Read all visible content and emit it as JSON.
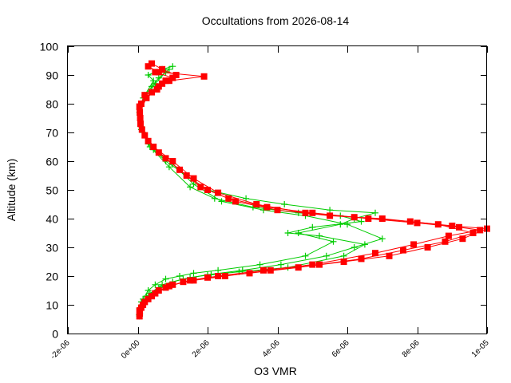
{
  "chart_data": {
    "type": "scatter",
    "title": "Occultations from 2026-08-14",
    "xlabel": "O3 VMR",
    "ylabel": "Altitude (km)",
    "xlim": [
      -2e-06,
      1e-05
    ],
    "ylim": [
      0,
      100
    ],
    "x_tick_labels": [
      "-2e-06",
      "0e+00",
      "2e-06",
      "4e-06",
      "6e-06",
      "8e-06",
      "1e-05"
    ],
    "x_tick_values": [
      -2e-06,
      0,
      2e-06,
      4e-06,
      6e-06,
      8e-06,
      1e-05
    ],
    "y_tick_labels": [
      "0",
      "10",
      "20",
      "30",
      "40",
      "50",
      "60",
      "70",
      "80",
      "90",
      "100"
    ],
    "y_tick_values": [
      0,
      10,
      20,
      30,
      40,
      50,
      60,
      70,
      80,
      90,
      100
    ],
    "grid": false,
    "legend": "none",
    "series": [
      {
        "marker": "plus",
        "color": "#00cc00",
        "profiles": [
          {
            "x": [
              5e-08,
              8e-08,
              1.5e-07,
              3e-07,
              5e-07,
              8e-07,
              1.2e-06,
              1.6e-06,
              2.3e-06,
              3.5e-06,
              4.8e-06,
              5.6e-06,
              4.6e-06,
              5.8e-06,
              6.2e-06,
              6.8e-06,
              5.5e-06,
              4.2e-06,
              3.1e-06,
              2e-06,
              1.4e-06,
              8e-07,
              3e-07,
              1e-07,
              5e-08,
              2e-07,
              4.5e-07,
              3e-07,
              7e-07,
              1e-06
            ],
            "y": [
              6,
              9,
              12,
              15,
              17,
              19,
              20,
              21,
              22,
              24,
              27,
              32,
              35,
              38,
              40,
              42,
              43,
              45,
              47,
              50,
              55,
              60,
              66,
              72,
              78,
              83,
              88,
              90,
              92,
              93
            ]
          },
          {
            "x": [
              6e-08,
              1.2e-07,
              2.5e-07,
              6e-07,
              1e-06,
              1.5e-06,
              2.1e-06,
              2.9e-06,
              4.3e-06,
              5.9e-06,
              6.5e-06,
              5.2e-06,
              4.3e-06,
              5e-06,
              6.4e-06,
              5.8e-06,
              4.6e-06,
              3.3e-06,
              2.2e-06,
              1.5e-06,
              9e-07,
              3.5e-07,
              1e-07,
              5e-08,
              1.5e-07,
              4e-07,
              6e-07,
              9e-07
            ],
            "y": [
              7,
              10,
              13,
              16,
              18,
              19.5,
              20.5,
              21.5,
              23,
              27,
              31,
              34,
              35,
              37,
              39,
              41,
              42,
              44,
              47,
              51,
              58,
              65,
              71,
              77,
              82,
              86,
              89,
              92
            ]
          },
          {
            "x": [
              4e-08,
              1e-07,
              3.5e-07,
              7e-07,
              1.3e-06,
              2e-06,
              3e-06,
              4.1e-06,
              5.4e-06,
              6.2e-06,
              7e-06,
              6e-06,
              4.8e-06,
              3.6e-06,
              2.4e-06,
              1.6e-06,
              1e-06,
              4.5e-07,
              1.5e-07,
              6e-08,
              2e-07,
              5e-07,
              8e-07
            ],
            "y": [
              6.5,
              11,
              14,
              17,
              19,
              20.5,
              22,
              24,
              27,
              30,
              33,
              38,
              41,
              43,
              46,
              52,
              59,
              64,
              70,
              76,
              82,
              87,
              91
            ]
          }
        ]
      },
      {
        "marker": "square",
        "color": "#ff0000",
        "profiles": [
          {
            "x": [
              5e-08,
              1e-07,
              3e-07,
              6e-07,
              1e-06,
              1.6e-06,
              2.5e-06,
              3.8e-06,
              5.2e-06,
              6.4e-06,
              7.6e-06,
              8.8e-06,
              9.6e-06,
              8.6e-06,
              7e-06,
              5.5e-06,
              4e-06,
              2.8e-06,
              2e-06,
              1.4e-06,
              8e-07,
              3e-07,
              8e-08,
              5e-08,
              2e-07,
              6e-07,
              9e-07,
              1.9e-06,
              6e-07,
              3e-07
            ],
            "y": [
              6,
              9,
              12,
              15,
              17,
              18.5,
              20,
              22,
              24,
              26,
              29,
              32,
              35,
              38,
              40,
              41,
              43,
              46,
              50,
              55,
              61,
              67,
              73,
              79,
              83,
              86,
              88,
              89.5,
              91,
              93
            ]
          },
          {
            "x": [
              6e-08,
              1.5e-07,
              4e-07,
              8e-07,
              1.3e-06,
              2e-06,
              3.2e-06,
              4.6e-06,
              5.9e-06,
              7.2e-06,
              8.3e-06,
              9.3e-06,
              1e-05,
              9e-06,
              7.8e-06,
              6.2e-06,
              4.8e-06,
              3.4e-06,
              2.3e-06,
              1.6e-06,
              1e-06,
              4.5e-07,
              1.2e-07,
              6e-08,
              2.5e-07,
              5.5e-07,
              8e-07,
              1.1e-06,
              7e-07,
              4e-07
            ],
            "y": [
              7,
              10,
              13,
              16,
              18,
              19.5,
              21,
              23,
              25,
              27,
              30,
              33,
              36.5,
              37.5,
              39,
              40.5,
              42,
              45,
              49,
              54,
              60,
              65,
              71,
              77,
              82,
              85,
              88,
              90,
              92,
              94
            ]
          },
          {
            "x": [
              5e-08,
              2e-07,
              5e-07,
              9e-07,
              1.5e-06,
              2.3e-06,
              3.6e-06,
              5e-06,
              6.8e-06,
              7.9e-06,
              8.9e-06,
              9.8e-06,
              9.2e-06,
              8e-06,
              6.6e-06,
              5e-06,
              3.7e-06,
              2.6e-06,
              1.8e-06,
              1.2e-06,
              6e-07,
              2e-07,
              7e-08,
              1e-07,
              4e-07,
              7e-07,
              1e-06,
              5e-07
            ],
            "y": [
              8,
              11,
              14,
              16.5,
              18.5,
              20,
              22,
              24,
              28,
              31,
              34,
              36,
              37,
              38.5,
              40,
              42,
              44,
              47,
              51,
              57,
              63,
              69,
              75,
              80,
              84,
              87,
              89,
              91
            ]
          }
        ]
      }
    ]
  }
}
